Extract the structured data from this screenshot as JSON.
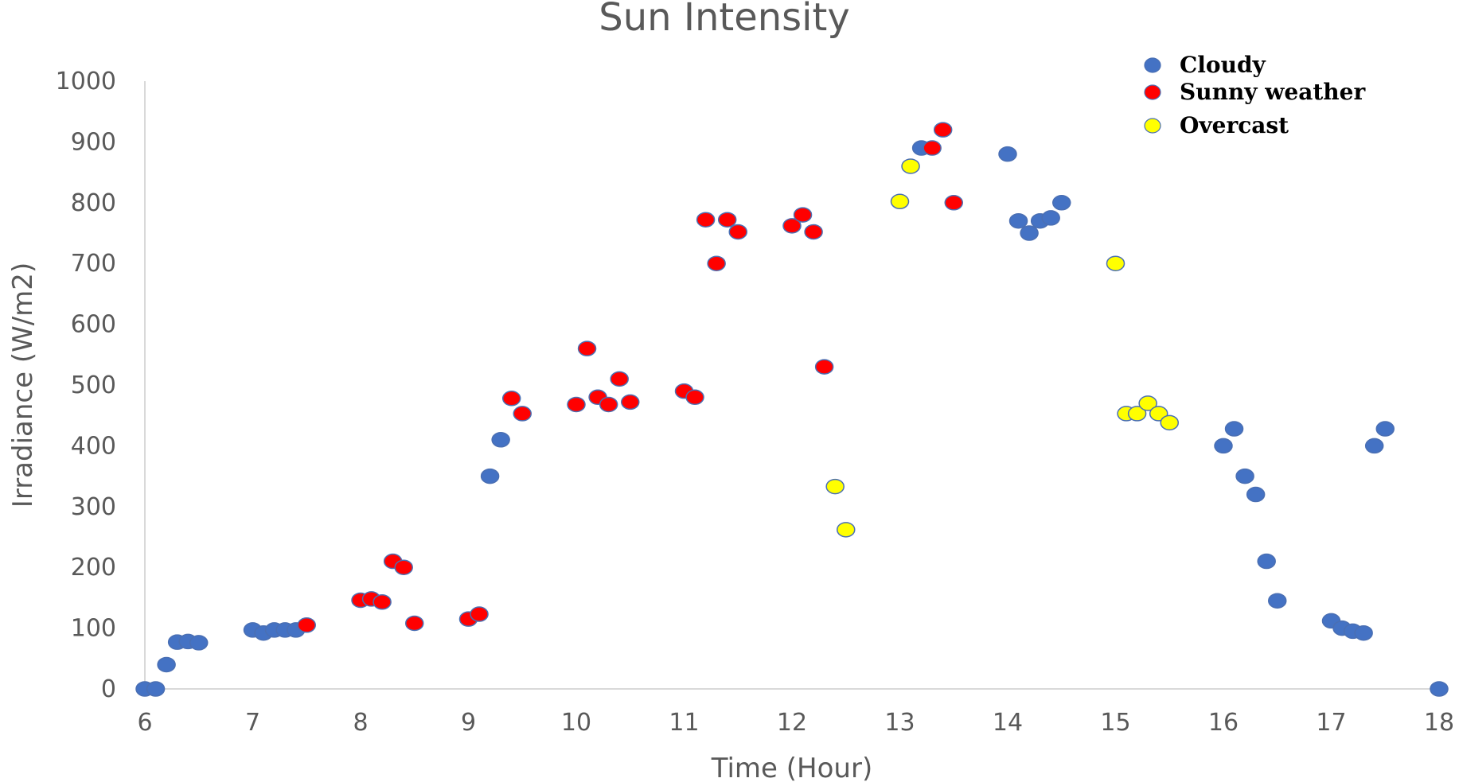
{
  "chart_data": {
    "type": "scatter",
    "title": "Sun Intensity",
    "xlabel": "Time (Hour)",
    "ylabel": "Irradiance (W/m2)",
    "xlim": [
      6,
      18
    ],
    "ylim": [
      0,
      1000
    ],
    "xticks": [
      6,
      7,
      8,
      9,
      10,
      11,
      12,
      13,
      14,
      15,
      16,
      17,
      18
    ],
    "yticks": [
      0,
      100,
      200,
      300,
      400,
      500,
      600,
      700,
      800,
      900,
      1000
    ],
    "grid": false,
    "legend_position": "top-right",
    "series": [
      {
        "name": "Cloudy",
        "color": "#4472C4",
        "points": [
          [
            6.0,
            0
          ],
          [
            6.1,
            0
          ],
          [
            6.2,
            40
          ],
          [
            6.3,
            77
          ],
          [
            6.4,
            78
          ],
          [
            6.5,
            76
          ],
          [
            7.0,
            97
          ],
          [
            7.1,
            92
          ],
          [
            7.2,
            97
          ],
          [
            7.3,
            97
          ],
          [
            7.4,
            97
          ],
          [
            9.2,
            350
          ],
          [
            9.3,
            410
          ],
          [
            13.2,
            890
          ],
          [
            14.0,
            880
          ],
          [
            14.1,
            770
          ],
          [
            14.2,
            750
          ],
          [
            14.3,
            770
          ],
          [
            14.4,
            775
          ],
          [
            14.5,
            800
          ],
          [
            16.0,
            400
          ],
          [
            16.1,
            428
          ],
          [
            16.2,
            350
          ],
          [
            16.3,
            320
          ],
          [
            16.4,
            210
          ],
          [
            16.5,
            145
          ],
          [
            17.0,
            112
          ],
          [
            17.1,
            100
          ],
          [
            17.2,
            95
          ],
          [
            17.3,
            92
          ],
          [
            17.4,
            400
          ],
          [
            17.5,
            428
          ],
          [
            18.0,
            0
          ]
        ]
      },
      {
        "name": "Sunny weather",
        "color": "#FF0000",
        "points": [
          [
            7.5,
            105
          ],
          [
            8.0,
            146
          ],
          [
            8.1,
            148
          ],
          [
            8.2,
            143
          ],
          [
            8.3,
            210
          ],
          [
            8.4,
            200
          ],
          [
            8.5,
            108
          ],
          [
            9.0,
            115
          ],
          [
            9.1,
            123
          ],
          [
            9.4,
            478
          ],
          [
            9.5,
            453
          ],
          [
            10.0,
            468
          ],
          [
            10.1,
            560
          ],
          [
            10.2,
            480
          ],
          [
            10.3,
            468
          ],
          [
            10.4,
            510
          ],
          [
            10.5,
            472
          ],
          [
            11.0,
            490
          ],
          [
            11.1,
            480
          ],
          [
            11.2,
            772
          ],
          [
            11.3,
            700
          ],
          [
            11.4,
            772
          ],
          [
            11.5,
            752
          ],
          [
            12.0,
            762
          ],
          [
            12.1,
            780
          ],
          [
            12.2,
            752
          ],
          [
            12.3,
            530
          ],
          [
            13.3,
            890
          ],
          [
            13.4,
            920
          ],
          [
            13.5,
            800
          ]
        ]
      },
      {
        "name": "Overcast",
        "color": "#FFFF00",
        "points": [
          [
            12.4,
            333
          ],
          [
            12.5,
            262
          ],
          [
            13.0,
            802
          ],
          [
            13.1,
            860
          ],
          [
            15.0,
            700
          ],
          [
            15.1,
            453
          ],
          [
            15.2,
            453
          ],
          [
            15.3,
            470
          ],
          [
            15.4,
            453
          ],
          [
            15.5,
            438
          ]
        ]
      }
    ]
  }
}
